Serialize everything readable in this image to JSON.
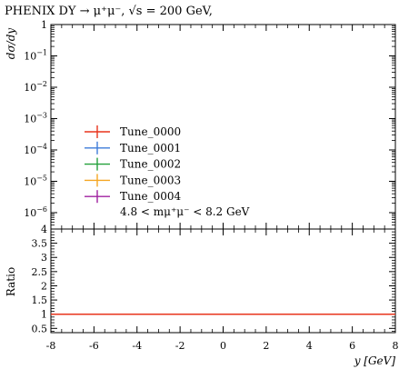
{
  "chart_data": {
    "type": "line",
    "title": "PHENIX DY → μ⁺μ⁻, √s = 200 GeV,",
    "xlabel": "y [GeV]",
    "ylabel_top": "dσ/dy",
    "ylabel_bottom": "Ratio",
    "annotation": "4.8 < mμ⁺μ⁻ < 8.2 GeV",
    "xlim": [
      -8,
      8
    ],
    "x_ticks": [
      -8,
      -6,
      -4,
      -2,
      0,
      2,
      4,
      6,
      8
    ],
    "x_tick_labels": [
      "-8",
      "-6",
      "-4",
      "-2",
      "0",
      "2",
      "4",
      "6",
      "8"
    ],
    "top_yscale": "log",
    "top_ylim": [
      3e-07,
      1
    ],
    "top_y_ticks": [
      {
        "value": 1,
        "base": "1",
        "exp": ""
      },
      {
        "value": 0.1,
        "base": "10",
        "exp": "−1"
      },
      {
        "value": 0.01,
        "base": "10",
        "exp": "−2"
      },
      {
        "value": 0.001,
        "base": "10",
        "exp": "−3"
      },
      {
        "value": 0.0001,
        "base": "10",
        "exp": "−4"
      },
      {
        "value": 1e-05,
        "base": "10",
        "exp": "−5"
      },
      {
        "value": 1e-06,
        "base": "10",
        "exp": "−6"
      }
    ],
    "ratio_ylim": [
      0.35,
      4.0
    ],
    "ratio_y_ticks": [
      0.5,
      1,
      1.5,
      2,
      2.5,
      3,
      3.5,
      4
    ],
    "ratio_y_tick_labels": [
      "0.5",
      "1",
      "1.5",
      "2",
      "2.5",
      "3",
      "3.5",
      "4"
    ],
    "ratio_line": 1.0,
    "legend_position": "lower-left",
    "series": [
      {
        "name": "Tune_0000",
        "color": "#e8341c"
      },
      {
        "name": "Tune_0001",
        "color": "#3d7bd9"
      },
      {
        "name": "Tune_0002",
        "color": "#23a03a"
      },
      {
        "name": "Tune_0003",
        "color": "#f5a623"
      },
      {
        "name": "Tune_0004",
        "color": "#a020a0"
      }
    ]
  }
}
